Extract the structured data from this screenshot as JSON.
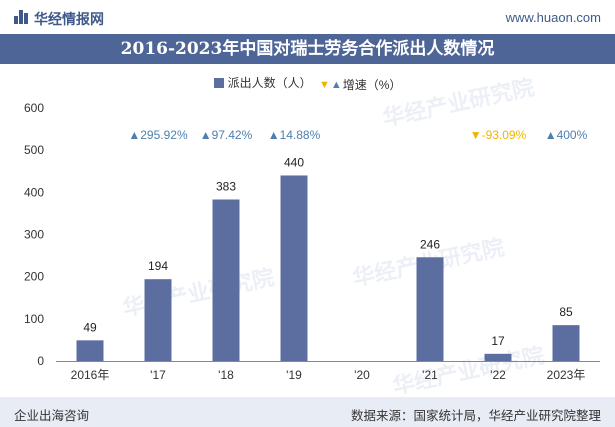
{
  "header": {
    "brand": "华经情报网",
    "site": "www.huaon.com",
    "title": "2016-2023年中国对瑞士劳务合作派出人数情况"
  },
  "legend": {
    "bar_label": "派出人数（人）",
    "growth_label": "增速（%）"
  },
  "watermark": "华经产业研究院",
  "footer": {
    "left": "企业出海咨询",
    "right": "数据来源：国家统计局，华经产业研究院整理"
  },
  "colors": {
    "bar": "#5b6e9f",
    "growth_up": "#4e7fae",
    "growth_down": "#f0b400",
    "title_bg": "#4e6597"
  },
  "chart_data": {
    "type": "bar",
    "title": "2016-2023年中国对瑞士劳务合作派出人数情况",
    "xlabel": "",
    "ylabel": "",
    "ylim": [
      0,
      600
    ],
    "yticks": [
      "0",
      "100",
      "200",
      "300",
      "400",
      "500",
      "600"
    ],
    "categories": [
      "2016年",
      "'17",
      "'18",
      "'19",
      "'20",
      "'21",
      "'22",
      "2023年"
    ],
    "series": [
      {
        "name": "派出人数（人）",
        "values": [
          49,
          194,
          383,
          440,
          null,
          246,
          17,
          85
        ],
        "labels": [
          "49",
          "194",
          "383",
          "440",
          "",
          "246",
          "17",
          "85"
        ]
      }
    ],
    "growth": {
      "name": "增速（%）",
      "labels": [
        "",
        "▲295.92%",
        "▲97.42%",
        "▲14.88%",
        "",
        "",
        "▼-93.09%",
        "▲400%"
      ],
      "direction": [
        "",
        "up",
        "up",
        "up",
        "",
        "",
        "down",
        "up"
      ]
    },
    "grid": false,
    "legend_position": "top-center"
  }
}
